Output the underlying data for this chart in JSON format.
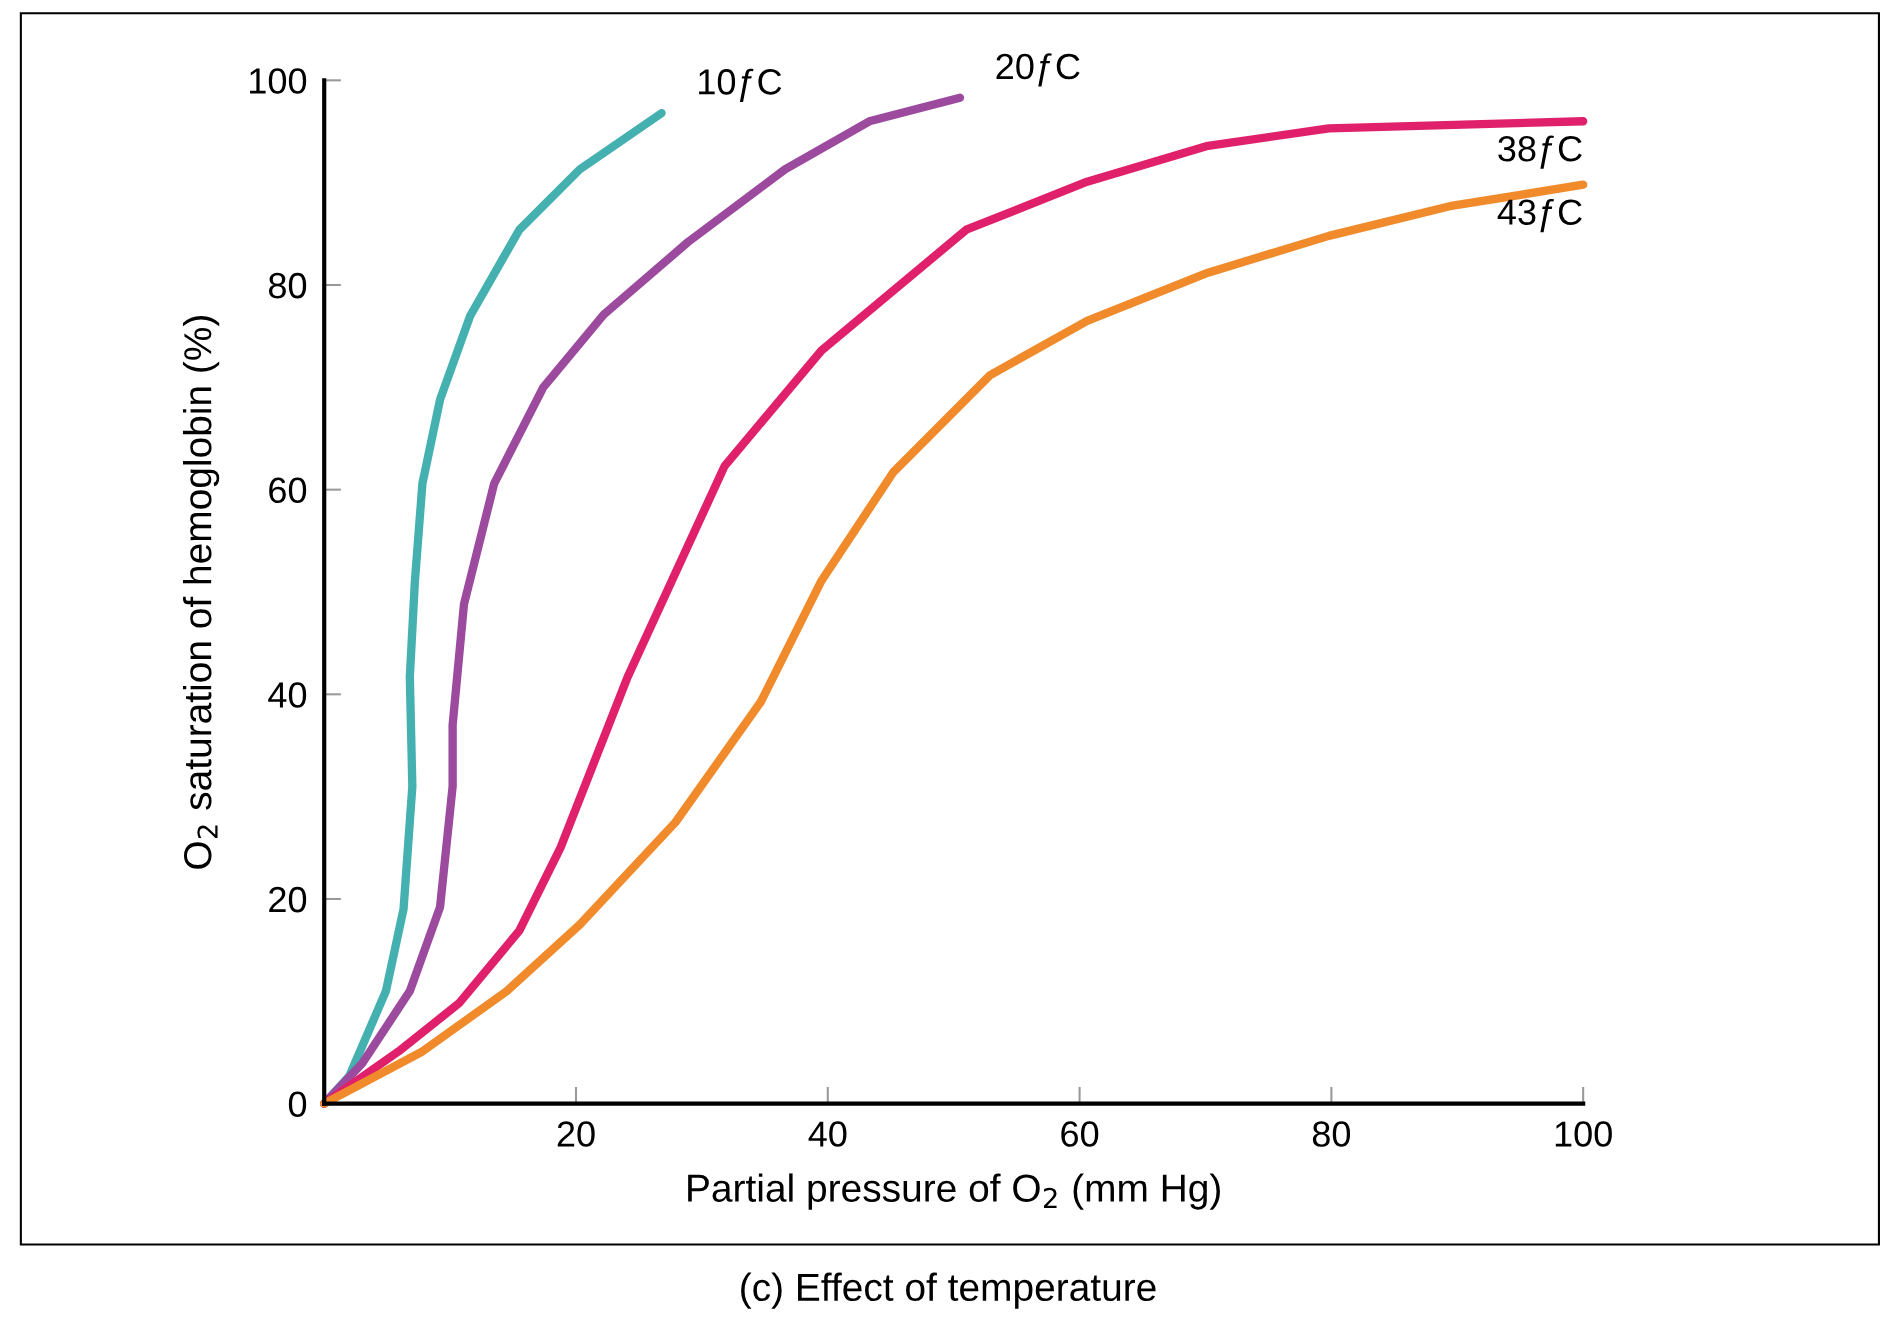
{
  "chart_data": {
    "type": "line",
    "xlabel": "Partial pressure of O$_{2}$ (mm Hg)",
    "ylabel": "O$_{2}$ saturation of hemoglobin (%)",
    "annotations": [
      "(c) Effect of temperature"
    ],
    "xlim": [
      0,
      100
    ],
    "ylim": [
      0,
      100
    ],
    "xticks": [
      {
        "value": 0,
        "label": null
      },
      20,
      40,
      60,
      80,
      100
    ],
    "yticks": [
      0,
      20,
      40,
      60,
      80,
      100
    ],
    "grid": false,
    "legend": false,
    "marker": "none",
    "line_style": "solid",
    "series": [
      {
        "name": "10ƒC",
        "color": "#45b0b0",
        "x": [
          0,
          2,
          4.9,
          6.3,
          7,
          6.8,
          7.2,
          7.8,
          9.2,
          11.6,
          15.5,
          20.3,
          26.8
        ],
        "values": [
          0,
          2.7,
          11,
          19,
          31,
          41.7,
          51,
          60.6,
          68.8,
          77,
          85.4,
          91.3,
          96.8
        ]
      },
      {
        "name": "20ƒC",
        "color": "#9b4a9e",
        "x": [
          0,
          3,
          6.8,
          9.2,
          10.2,
          10.2,
          11.1,
          13.5,
          17.4,
          22.2,
          28.9,
          36.6,
          43.3,
          50.5
        ],
        "values": [
          0,
          3.9,
          11,
          19.2,
          31,
          37,
          48.8,
          60.6,
          70,
          77.1,
          84.2,
          91.3,
          96,
          98.3
        ]
      },
      {
        "name": "38ƒC",
        "color": "#e0206b",
        "x": [
          0,
          5.9,
          10.7,
          15.5,
          18.8,
          24.1,
          31.8,
          39.5,
          51,
          60.6,
          70.2,
          79.8,
          100
        ],
        "values": [
          0,
          5.1,
          9.8,
          16.9,
          25.1,
          41.7,
          62.3,
          73.6,
          85.4,
          90.1,
          93.6,
          95.3,
          96
        ]
      },
      {
        "name": "43ƒC",
        "color": "#f08a2a",
        "x": [
          0,
          7.8,
          14.5,
          20.3,
          27.9,
          34.7,
          39.5,
          45.2,
          52.9,
          60.6,
          70.2,
          79.8,
          89.4,
          100
        ],
        "values": [
          0,
          5.1,
          11,
          17.5,
          27.5,
          39.3,
          51.1,
          61.7,
          71.2,
          76.5,
          81.2,
          84.8,
          87.7,
          89.8
        ]
      }
    ]
  }
}
